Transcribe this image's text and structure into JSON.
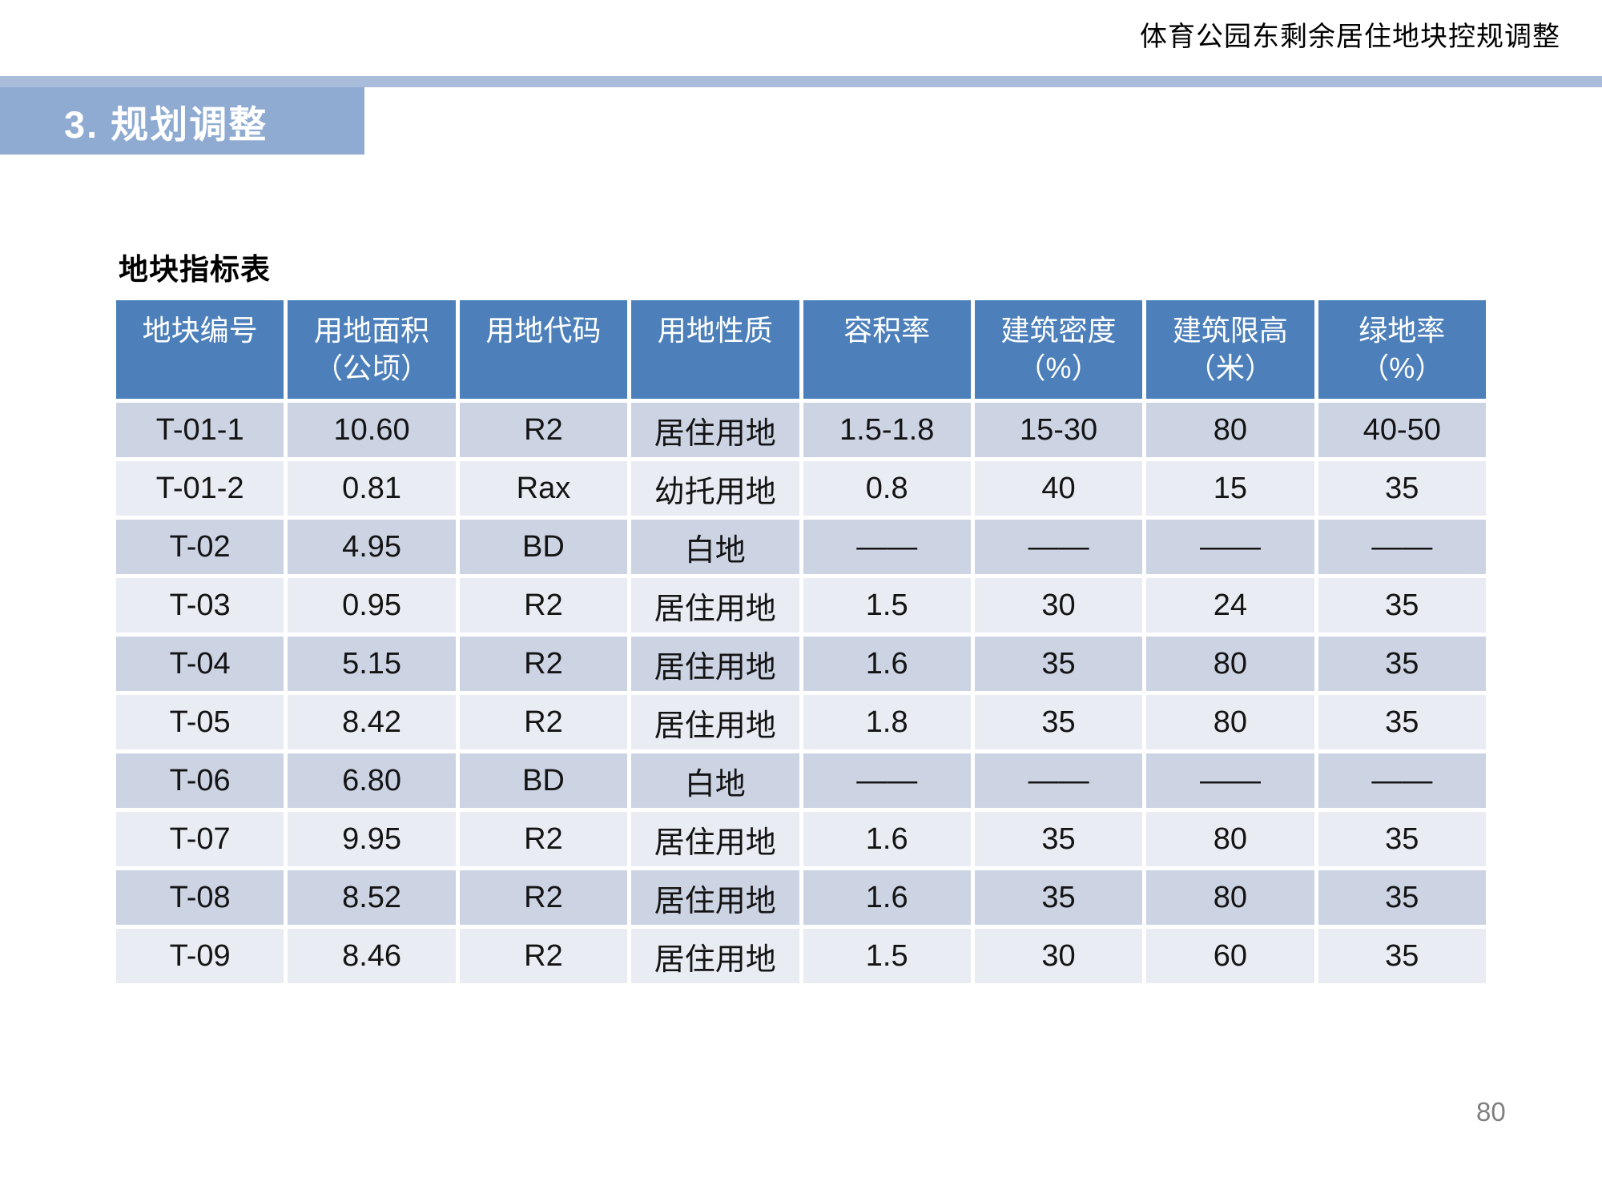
{
  "page": {
    "header_title": "体育公园东剩余居住地块控规调整",
    "section_banner": "3. 规划调整",
    "table_title": "地块指标表",
    "page_number": "80"
  },
  "colors": {
    "banner_blue": "#8fabd2",
    "rule_blue": "#a9bcda",
    "table_header_blue": "#4d80bb",
    "row_dark": "#ccd3e3",
    "row_light": "#e9ecf3"
  },
  "table": {
    "columns": [
      {
        "label": "地块编号",
        "sub": ""
      },
      {
        "label": "用地面积",
        "sub": "（公顷）"
      },
      {
        "label": "用地代码",
        "sub": ""
      },
      {
        "label": "用地性质",
        "sub": ""
      },
      {
        "label": "容积率",
        "sub": ""
      },
      {
        "label": "建筑密度",
        "sub": "（%）"
      },
      {
        "label": "建筑限高",
        "sub": "（米）"
      },
      {
        "label": "绿地率",
        "sub": "（%）"
      }
    ],
    "rows": [
      [
        "T-01-1",
        "10.60",
        "R2",
        "居住用地",
        "1.5-1.8",
        "15-30",
        "80",
        "40-50"
      ],
      [
        "T-01-2",
        "0.81",
        "Rax",
        "幼托用地",
        "0.8",
        "40",
        "15",
        "35"
      ],
      [
        "T-02",
        "4.95",
        "BD",
        "白地",
        "——",
        "——",
        "——",
        "——"
      ],
      [
        "T-03",
        "0.95",
        "R2",
        "居住用地",
        "1.5",
        "30",
        "24",
        "35"
      ],
      [
        "T-04",
        "5.15",
        "R2",
        "居住用地",
        "1.6",
        "35",
        "80",
        "35"
      ],
      [
        "T-05",
        "8.42",
        "R2",
        "居住用地",
        "1.8",
        "35",
        "80",
        "35"
      ],
      [
        "T-06",
        "6.80",
        "BD",
        "白地",
        "——",
        "——",
        "——",
        "——"
      ],
      [
        "T-07",
        "9.95",
        "R2",
        "居住用地",
        "1.6",
        "35",
        "80",
        "35"
      ],
      [
        "T-08",
        "8.52",
        "R2",
        "居住用地",
        "1.6",
        "35",
        "80",
        "35"
      ],
      [
        "T-09",
        "8.46",
        "R2",
        "居住用地",
        "1.5",
        "30",
        "60",
        "35"
      ]
    ]
  }
}
